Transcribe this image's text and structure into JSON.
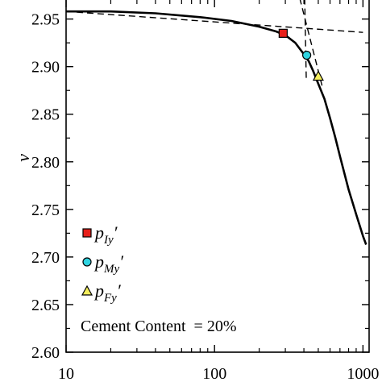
{
  "chart_data": {
    "type": "line",
    "title": "",
    "xlabel": "",
    "ylabel": "v",
    "xscale": "log",
    "xlim": [
      10,
      1100
    ],
    "ylim": [
      2.6,
      2.97
    ],
    "xticks": [
      {
        "value": 10,
        "label": "10"
      },
      {
        "value": 100,
        "label": "100"
      },
      {
        "value": 1000,
        "label": "1000"
      }
    ],
    "yticks": [
      {
        "value": 2.6,
        "label": "2.60"
      },
      {
        "value": 2.65,
        "label": "2.65"
      },
      {
        "value": 2.7,
        "label": "2.70"
      },
      {
        "value": 2.75,
        "label": "2.75"
      },
      {
        "value": 2.8,
        "label": "2.80"
      },
      {
        "value": 2.85,
        "label": "2.85"
      },
      {
        "value": 2.9,
        "label": "2.90"
      },
      {
        "value": 2.95,
        "label": "2.95"
      }
    ],
    "grid": false,
    "series": [
      {
        "color": "#000000",
        "x": [
          10,
          20,
          40,
          80,
          130,
          200,
          260,
          300,
          350,
          400,
          430,
          460,
          500,
          550,
          600,
          650,
          700,
          800,
          900,
          1000,
          1050
        ],
        "y": [
          2.958,
          2.958,
          2.956,
          2.952,
          2.948,
          2.942,
          2.937,
          2.933,
          2.925,
          2.913,
          2.906,
          2.896,
          2.882,
          2.866,
          2.846,
          2.826,
          2.806,
          2.771,
          2.745,
          2.722,
          2.713
        ]
      }
    ],
    "tangent_lines": [
      {
        "style": "dashed",
        "x": [
          10,
          1000
        ],
        "y": [
          2.958,
          2.936
        ]
      },
      {
        "style": "dashed",
        "x": [
          405,
          415
        ],
        "y": [
          2.972,
          2.887
        ]
      },
      {
        "style": "dashed",
        "x": [
          375,
          530
        ],
        "y": [
          2.972,
          2.88
        ]
      }
    ],
    "markers": [
      {
        "shape": "square",
        "color": "#e8201a",
        "x": 290,
        "y": 2.935,
        "legend": "p_Iy'"
      },
      {
        "shape": "circle",
        "color": "#2fd3e0",
        "x": 418,
        "y": 2.912,
        "legend": "p_My'"
      },
      {
        "shape": "triangle",
        "color": "#f4ee5c",
        "x": 500,
        "y": 2.89,
        "legend": "p_Fy'"
      }
    ],
    "legend": {
      "placement": "lower-left",
      "entries": [
        {
          "base": "p",
          "sub": "Iy",
          "prime": "′"
        },
        {
          "base": "p",
          "sub": "My",
          "prime": "′"
        },
        {
          "base": "p",
          "sub": "Fy",
          "prime": "′"
        }
      ]
    },
    "annotation": "Cement Content  = 20%"
  }
}
